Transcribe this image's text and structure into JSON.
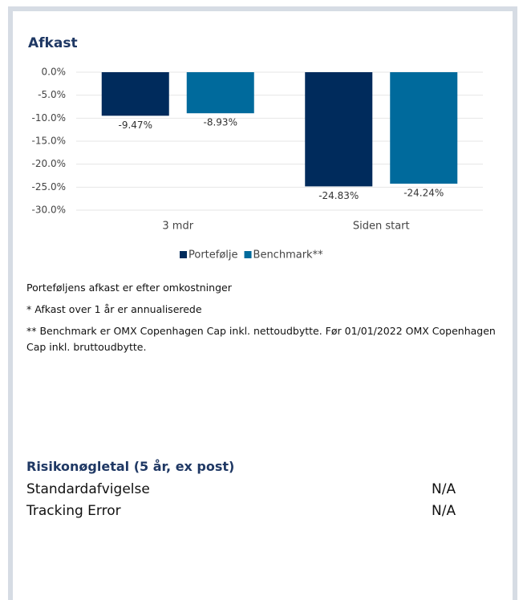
{
  "chart_data": {
    "type": "bar",
    "title": "Afkast",
    "categories": [
      "3 mdr",
      "Siden start"
    ],
    "series": [
      {
        "name": "Portefølje",
        "color": "#002b5c",
        "values": [
          -9.47,
          -24.83
        ],
        "value_labels": [
          "-9.47%",
          "-24.83%"
        ]
      },
      {
        "name": "Benchmark**",
        "color": "#006a9c",
        "values": [
          -8.93,
          -24.24
        ],
        "value_labels": [
          "-8.93%",
          "-24.24%"
        ]
      }
    ],
    "ylim": [
      -30,
      0
    ],
    "yticks": [
      {
        "value": 0,
        "label": "0.0%"
      },
      {
        "value": -5,
        "label": "-5.0%"
      },
      {
        "value": -10,
        "label": "-10.0%"
      },
      {
        "value": -15,
        "label": "-15.0%"
      },
      {
        "value": -20,
        "label": "-20.0%"
      },
      {
        "value": -25,
        "label": "-25.0%"
      },
      {
        "value": -30,
        "label": "-30.0%"
      }
    ],
    "grid": true,
    "legend": "bottom"
  },
  "notes": [
    "Porteføljens afkast er efter omkostninger",
    "* Afkast over 1 år er annualiserede",
    "** Benchmark er OMX Copenhagen Cap inkl. nettoudbytte. Før 01/01/2022 OMX Copenhagen Cap inkl. bruttoudbytte."
  ],
  "risk": {
    "title": "Risikonøgletal (5 år, ex post)",
    "rows": [
      [
        "Standardafvigelse",
        "N/A"
      ],
      [
        "Tracking Error",
        "N/A"
      ]
    ]
  }
}
